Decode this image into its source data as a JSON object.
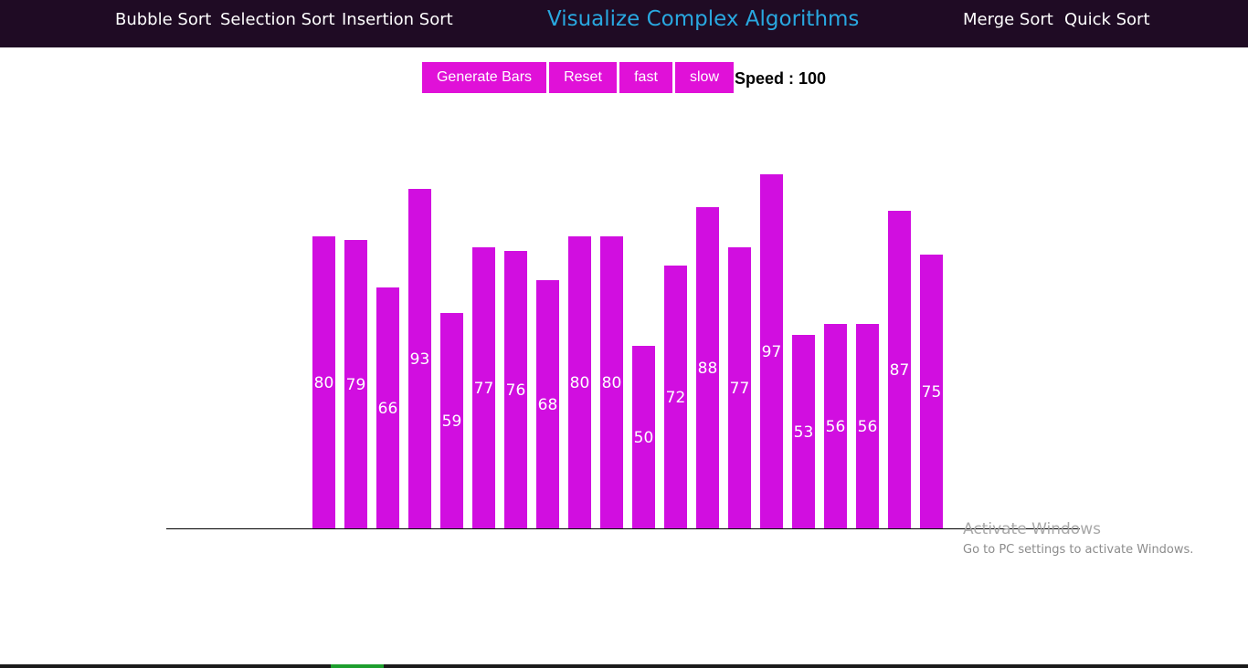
{
  "nav": {
    "left_links": [
      "Bubble Sort",
      "Selection Sort",
      "Insertion Sort"
    ],
    "title": "Visualize Complex Algorithms",
    "right_links": [
      "Merge Sort",
      "Quick Sort"
    ]
  },
  "controls": {
    "generate_label": "Generate Bars",
    "reset_label": "Reset",
    "fast_label": "fast",
    "slow_label": "slow",
    "speed_label": "Speed : ",
    "speed_value": "100"
  },
  "colors": {
    "navbar_bg": "#1f0b24",
    "title_color": "#29a8e0",
    "button_bg": "#e011d8",
    "bar_color": "#d10ee0"
  },
  "chart_data": {
    "type": "bar",
    "values": [
      80,
      79,
      66,
      93,
      59,
      77,
      76,
      68,
      80,
      80,
      50,
      72,
      88,
      77,
      97,
      53,
      56,
      56,
      87,
      75
    ],
    "data_labels_shown": true
  },
  "watermark": {
    "title": "Activate Windows",
    "subtitle": "Go to PC settings to activate Windows."
  }
}
